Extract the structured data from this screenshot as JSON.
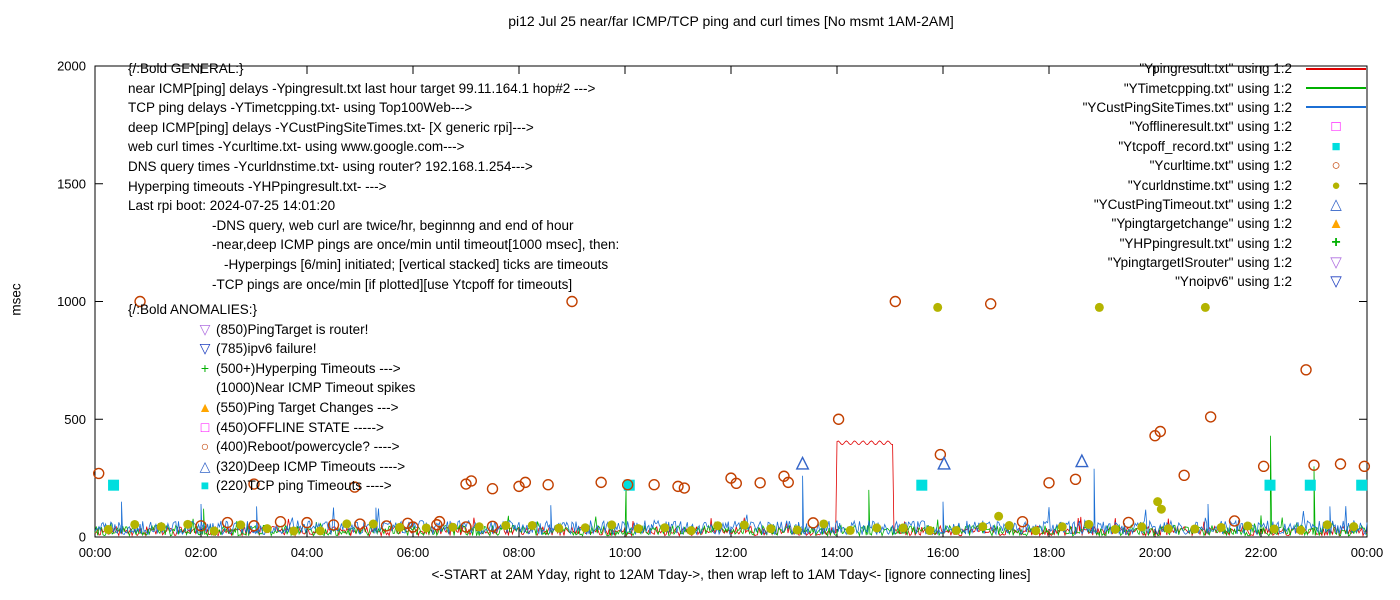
{
  "title": "pi12 Jul 25  near/far ICMP/TCP ping and curl times [No msmt 1AM-2AM]",
  "x_axis_label": "<-START at 2AM Yday, right to 12AM Tday->, then wrap left to 1AM Tday<- [ignore connecting lines]",
  "y_axis_label": "msec",
  "legend": [
    {
      "label": "\"Ypingresult.txt\" using 1:2",
      "sample": "line",
      "color": "#e00000"
    },
    {
      "label": "\"YTimetcpping.txt\" using 1:2",
      "sample": "line",
      "color": "#00b000"
    },
    {
      "label": "\"YCustPingSiteTimes.txt\" using 1:2",
      "sample": "line",
      "color": "#1c6fd4"
    },
    {
      "label": "\"Yofflineresult.txt\" using 1:2",
      "sample": "open-square",
      "color": "#ff00ff"
    },
    {
      "label": "\"Ytcpoff_record.txt\" using 1:2",
      "sample": "filled-square",
      "color": "#00dede"
    },
    {
      "label": "\"Ycurltime.txt\" using 1:2",
      "sample": "open-circle",
      "color": "#c24000"
    },
    {
      "label": "\"Ycurldnstime.txt\" using 1:2",
      "sample": "filled-circle",
      "color": "#b4b400"
    },
    {
      "label": "\"YCustPingTimeout.txt\" using 1:2",
      "sample": "open-triangle-up",
      "color": "#3465c8"
    },
    {
      "label": "\"Ypingtargetchange\" using 1:2",
      "sample": "filled-triangle-up",
      "color": "#ffa500"
    },
    {
      "label": "\"YHPpingresult.txt\" using 1:2",
      "sample": "plus",
      "color": "#00b000"
    },
    {
      "label": "\"YpingtargetISrouter\" using 1:2",
      "sample": "open-triangle-down",
      "color": "#b070e0"
    },
    {
      "label": "\"Ynoipv6\" using 1:2",
      "sample": "open-triangle-down",
      "color": "#2040c0"
    }
  ],
  "annotations": {
    "general": {
      "lines": [
        {
          "indent": 0,
          "text": "{/:Bold GENERAL:}"
        },
        {
          "indent": 0,
          "text": "near ICMP[ping] delays -Ypingresult.txt last hour target 99.11.164.1 hop#2 --->"
        },
        {
          "indent": 0,
          "text": "TCP ping delays -YTimetcpping.txt- using Top100Web--->"
        },
        {
          "indent": 0,
          "text": "deep ICMP[ping] delays -YCustPingSiteTimes.txt- [X generic rpi]--->"
        },
        {
          "indent": 0,
          "text": "web curl times -Ycurltime.txt- using www.google.com--->"
        },
        {
          "indent": 0,
          "text": "DNS query times -Ycurldnstime.txt- using router? 192.168.1.254--->"
        },
        {
          "indent": 0,
          "text": "Hyperping timeouts -YHPpingresult.txt- --->"
        },
        {
          "indent": 0,
          "text": "Last rpi boot: 2024-07-25 14:01:20"
        },
        {
          "indent": 84,
          "text": "-DNS query, web curl are twice/hr, beginnng and end of hour"
        },
        {
          "indent": 84,
          "text": "-near,deep ICMP pings are once/min until timeout[1000 msec], then:"
        },
        {
          "indent": 96,
          "text": "-Hyperpings [6/min] initiated; [vertical stacked] ticks are timeouts"
        },
        {
          "indent": 84,
          "text": "-TCP pings are once/min [if plotted][use Ytcpoff for timeouts]"
        }
      ]
    },
    "anomalies": {
      "title": "{/:Bold ANOMALIES:}",
      "items": [
        {
          "marker": "open-triangle-down",
          "color": "#b070e0",
          "text": "(850)PingTarget is router!"
        },
        {
          "marker": "open-triangle-down",
          "color": "#2040c0",
          "text": "(785)ipv6 failure!"
        },
        {
          "marker": "plus",
          "color": "#00b000",
          "text": "(500+)Hyperping Timeouts --->"
        },
        {
          "marker": null,
          "color": "",
          "text": "(1000)Near ICMP Timeout spikes"
        },
        {
          "marker": "filled-triangle-up",
          "color": "#ffa500",
          "text": "(550)Ping Target Changes --->"
        },
        {
          "marker": "open-square",
          "color": "#ff00ff",
          "text": "(450)OFFLINE STATE ----->"
        },
        {
          "marker": "open-circle",
          "color": "#c24000",
          "text": "(400)Reboot/powercycle? ---->"
        },
        {
          "marker": "open-triangle-up",
          "color": "#3465c8",
          "text": "(320)Deep ICMP Timeouts ---->"
        },
        {
          "marker": "filled-square",
          "color": "#00dede",
          "text": "(220)TCP ping Timeouts ---->"
        }
      ]
    }
  },
  "chart_data": {
    "type": "mixed line+scatter",
    "x_range": [
      0,
      24
    ],
    "y_range": [
      0,
      2000
    ],
    "x_tick_values": [
      0,
      2,
      4,
      6,
      8,
      10,
      12,
      14,
      16,
      18,
      20,
      22,
      24
    ],
    "x_tick_labels": [
      "00:00",
      "02:00",
      "04:00",
      "06:00",
      "08:00",
      "10:00",
      "12:00",
      "14:00",
      "16:00",
      "18:00",
      "20:00",
      "22:00",
      "00:00"
    ],
    "y_tick_values": [
      0,
      500,
      1000,
      1500,
      2000
    ],
    "y_tick_labels": [
      "0",
      "500",
      "1000",
      "1500",
      "2000"
    ],
    "series": [
      {
        "name": "Ypingresult.txt",
        "style": "noise-line",
        "color": "#e00000",
        "base": 5,
        "amp": 40,
        "seed": 11,
        "pph": 40,
        "spikes": [],
        "plateaus": [
          [
            14.0,
            15.05,
            400
          ]
        ]
      },
      {
        "name": "YTimetcpping.txt",
        "style": "noise-line",
        "color": "#00b000",
        "base": 5,
        "amp": 45,
        "seed": 22,
        "pph": 40,
        "spikes": [
          [
            2.05,
            120
          ],
          [
            10.02,
            230
          ],
          [
            14.6,
            200
          ],
          [
            22.18,
            430
          ],
          [
            23.0,
            300
          ]
        ],
        "plateaus": []
      },
      {
        "name": "YCustPingSiteTimes.txt",
        "style": "noise-line",
        "color": "#1c6fd4",
        "base": 10,
        "amp": 60,
        "seed": 33,
        "pph": 40,
        "spikes": [
          [
            0.5,
            150
          ],
          [
            2.0,
            140
          ],
          [
            3.05,
            130
          ],
          [
            5.3,
            125
          ],
          [
            8.6,
            135
          ],
          [
            13.35,
            260
          ],
          [
            16.0,
            150
          ],
          [
            18.85,
            290
          ],
          [
            21.0,
            140
          ],
          [
            23.3,
            130
          ]
        ],
        "plateaus": []
      },
      {
        "name": "Yofflineresult.txt",
        "style": "scatter",
        "marker": "open-square",
        "color": "#ff00ff",
        "size": 10,
        "points": []
      },
      {
        "name": "Ytcpoff_record.txt",
        "style": "scatter",
        "marker": "filled-square",
        "color": "#00dede",
        "size": 11,
        "points": [
          [
            0.35,
            220
          ],
          [
            10.08,
            220
          ],
          [
            15.6,
            220
          ],
          [
            22.17,
            220
          ],
          [
            22.93,
            220
          ],
          [
            23.9,
            220
          ]
        ]
      },
      {
        "name": "Ycurltime.txt",
        "style": "scatter",
        "marker": "open-circle",
        "color": "#c24000",
        "size": 10,
        "pattern": {
          "x0": 2.0,
          "dx": 0.5,
          "count": 12,
          "y": 55,
          "jitter": 14,
          "seed": 5
        },
        "points": [
          [
            0.07,
            270
          ],
          [
            0.85,
            1000
          ],
          [
            3.0,
            225
          ],
          [
            4.9,
            212
          ],
          [
            5.9,
            58
          ],
          [
            6.45,
            52
          ],
          [
            7.0,
            225
          ],
          [
            7.1,
            238
          ],
          [
            7.5,
            205
          ],
          [
            8.0,
            215
          ],
          [
            8.12,
            232
          ],
          [
            8.55,
            222
          ],
          [
            9.0,
            1000
          ],
          [
            9.55,
            232
          ],
          [
            10.05,
            222
          ],
          [
            10.55,
            222
          ],
          [
            11.0,
            215
          ],
          [
            11.12,
            208
          ],
          [
            12.0,
            250
          ],
          [
            12.1,
            228
          ],
          [
            12.55,
            230
          ],
          [
            13.0,
            258
          ],
          [
            13.08,
            232
          ],
          [
            13.55,
            60
          ],
          [
            14.03,
            500
          ],
          [
            15.1,
            1000
          ],
          [
            15.95,
            350
          ],
          [
            16.9,
            990
          ],
          [
            17.5,
            65
          ],
          [
            18.0,
            230
          ],
          [
            18.5,
            245
          ],
          [
            19.5,
            62
          ],
          [
            20.0,
            430
          ],
          [
            20.1,
            448
          ],
          [
            20.55,
            262
          ],
          [
            21.05,
            510
          ],
          [
            21.5,
            68
          ],
          [
            22.05,
            300
          ],
          [
            22.85,
            710
          ],
          [
            23.0,
            305
          ],
          [
            23.5,
            310
          ],
          [
            23.95,
            300
          ]
        ]
      },
      {
        "name": "Ycurldnstime.txt",
        "style": "scatter",
        "marker": "filled-circle",
        "color": "#b4b400",
        "size": 9,
        "pattern": {
          "x0": 0.25,
          "dx": 0.5,
          "count": 48,
          "y": 40,
          "jitter": 16,
          "seed": 7
        },
        "points": [
          [
            15.9,
            975
          ],
          [
            18.95,
            975
          ],
          [
            20.95,
            975
          ],
          [
            17.05,
            88
          ],
          [
            20.05,
            150
          ],
          [
            20.12,
            118
          ]
        ]
      },
      {
        "name": "YCustPingTimeout.txt",
        "style": "scatter",
        "marker": "open-triangle-up",
        "color": "#3465c8",
        "size": 11,
        "points": [
          [
            13.35,
            310
          ],
          [
            16.02,
            310
          ],
          [
            18.62,
            320
          ]
        ]
      },
      {
        "name": "Ypingtargetchange",
        "style": "scatter",
        "marker": "filled-triangle-up",
        "color": "#ffa500",
        "size": 11,
        "points": []
      },
      {
        "name": "YHPpingresult.txt",
        "style": "scatter",
        "marker": "plus",
        "color": "#00b000",
        "size": 10,
        "points": []
      },
      {
        "name": "YpingtargetISrouter",
        "style": "scatter",
        "marker": "open-triangle-down",
        "color": "#b070e0",
        "size": 11,
        "points": []
      },
      {
        "name": "Ynoipv6",
        "style": "scatter",
        "marker": "open-triangle-down",
        "color": "#2040c0",
        "size": 11,
        "points": []
      }
    ]
  }
}
